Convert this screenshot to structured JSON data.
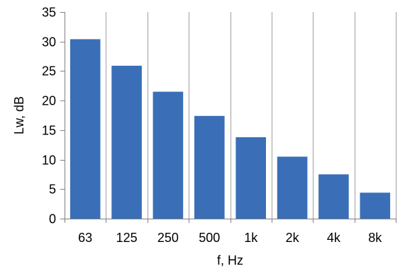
{
  "chart_data": {
    "type": "bar",
    "categories": [
      "63",
      "125",
      "250",
      "500",
      "1k",
      "2k",
      "4k",
      "8k"
    ],
    "values": [
      30.4,
      25.9,
      21.5,
      17.4,
      13.8,
      10.5,
      7.5,
      4.4
    ],
    "xlabel": "f, Hz",
    "ylabel": "Lw, dB",
    "ylim": [
      0,
      35
    ],
    "yticks": [
      0,
      5,
      10,
      15,
      20,
      25,
      30,
      35
    ],
    "bar_color": "#3a6fb8",
    "grid": "vertical",
    "legend": "none"
  }
}
